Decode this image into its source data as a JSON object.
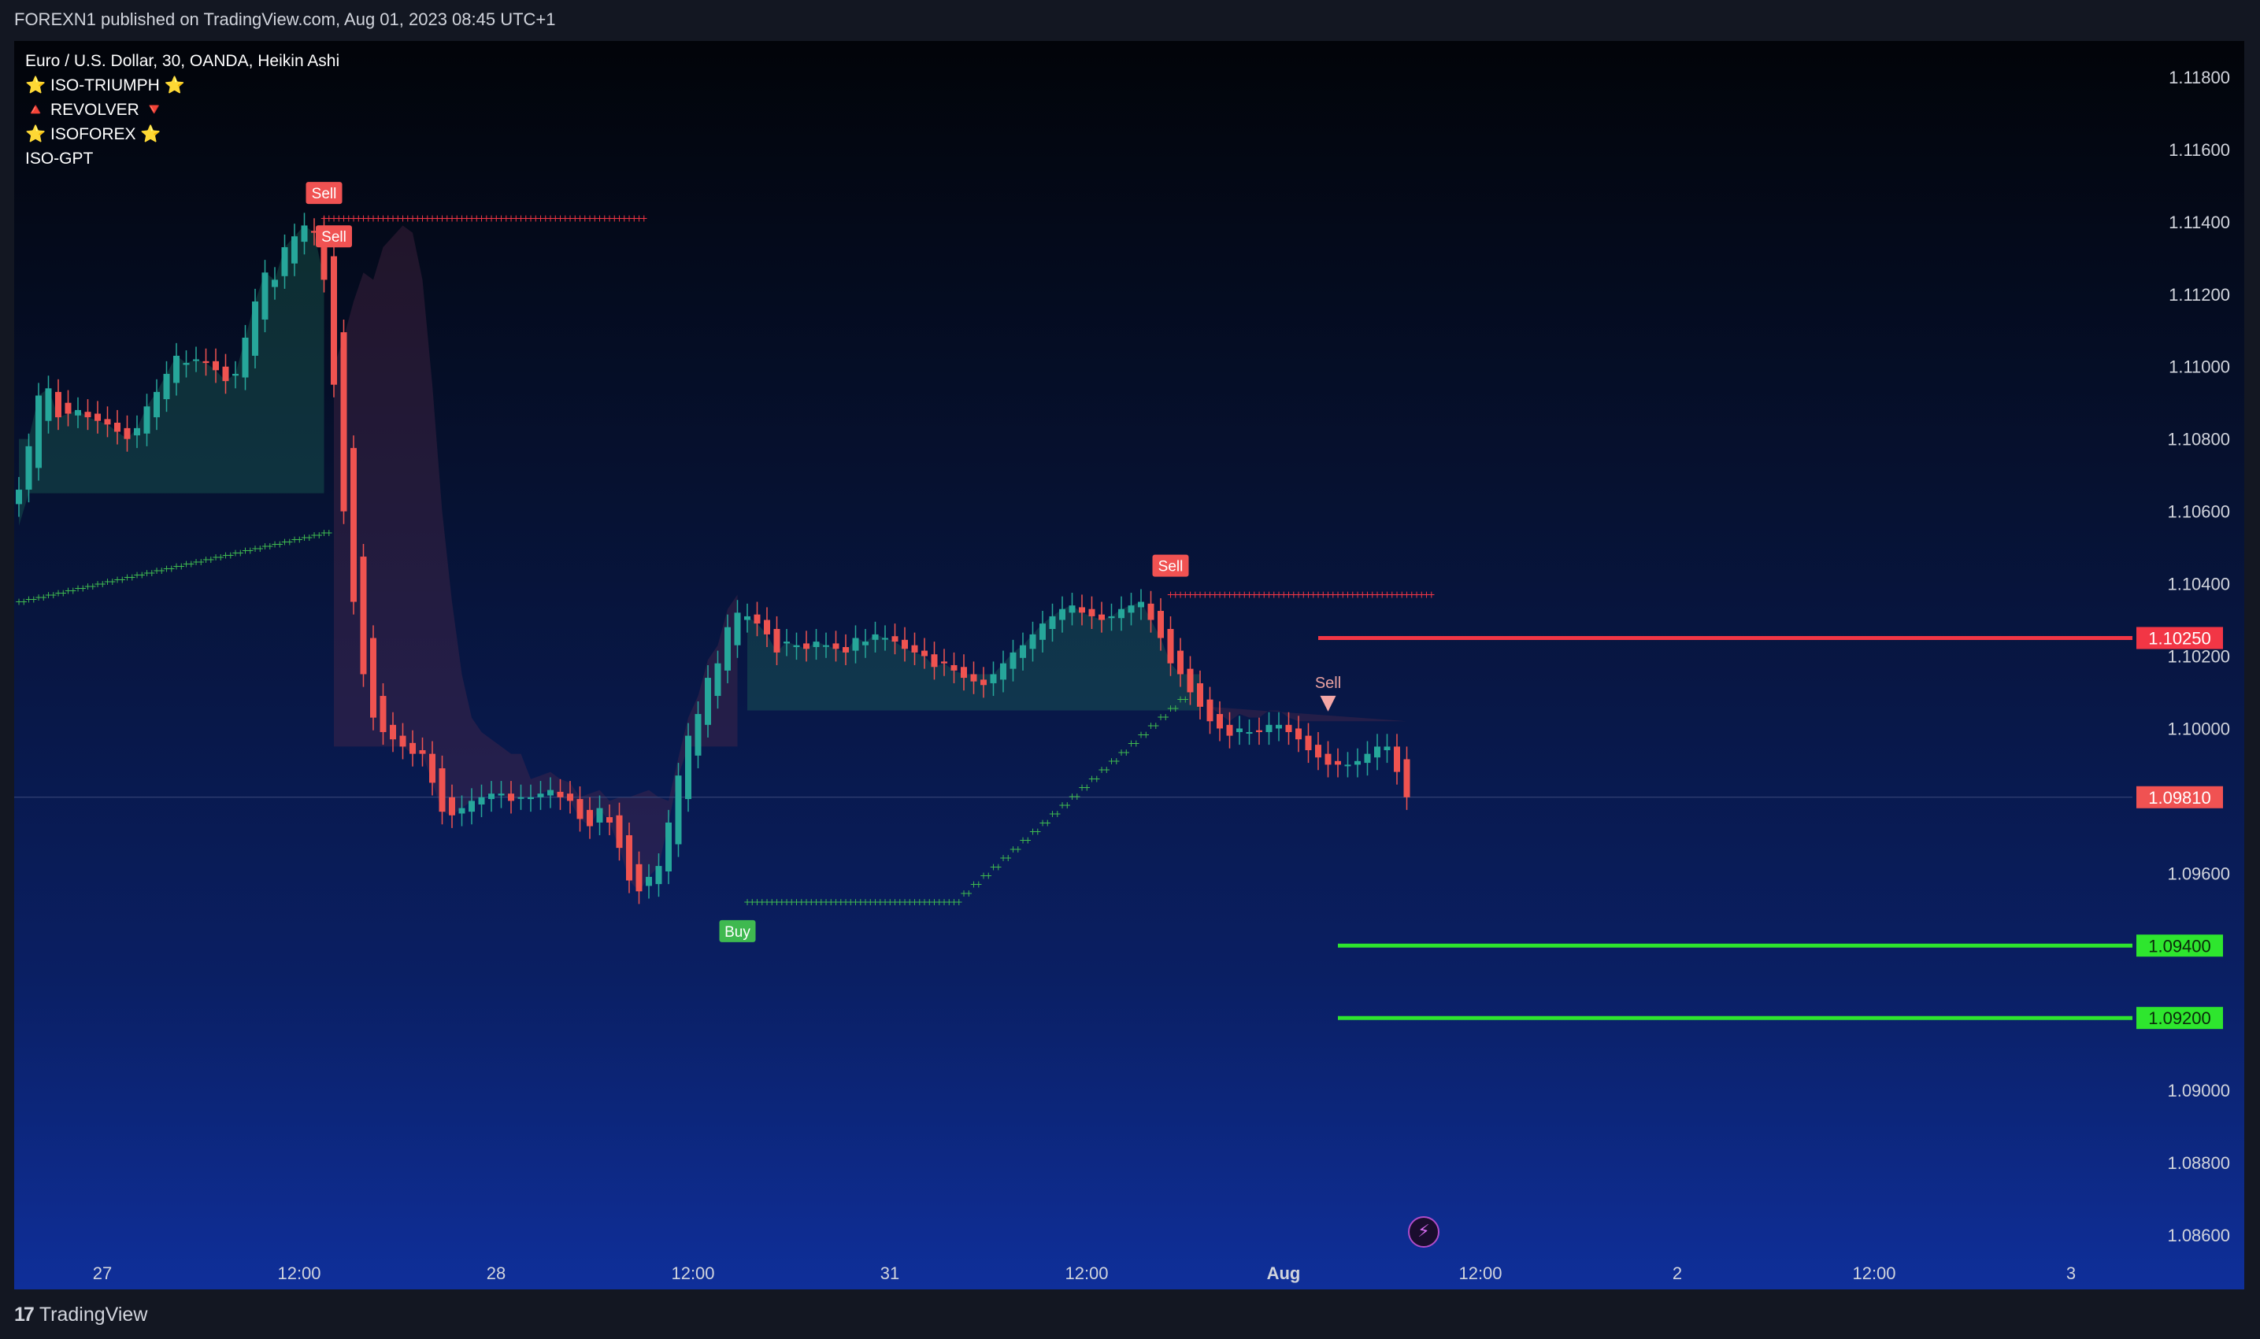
{
  "header": {
    "published_text": "FOREXN1 published on TradingView.com, Aug 01, 2023 08:45 UTC+1"
  },
  "legend": {
    "symbol_line": "Euro / U.S. Dollar, 30, OANDA, Heikin Ashi",
    "indicators": [
      "⭐ ISO-TRIUMPH ⭐",
      "🔺 REVOLVER 🔻",
      "⭐ ISOFOREX ⭐",
      "ISO-GPT"
    ]
  },
  "footer": {
    "brand": "TradingView",
    "brand_mark": "17"
  },
  "colors": {
    "bull": "#26a69a",
    "bear": "#ef5350",
    "sell_label": "#f05252",
    "buy_label": "#3fb950",
    "resistance": "#f23645",
    "support": "#2ee62e",
    "bolt": "#b04cc8"
  },
  "chart_data": {
    "type": "candlestick",
    "title": "Euro / U.S. Dollar, 30, OANDA, Heikin Ashi",
    "y_axis": {
      "ticks": [
        "1.11800",
        "1.11600",
        "1.11400",
        "1.11200",
        "1.11000",
        "1.10800",
        "1.10600",
        "1.10400",
        "1.10200",
        "1.10000",
        "1.09600",
        "1.09000",
        "1.08800",
        "1.08600"
      ],
      "ylim": [
        1.0855,
        1.119
      ]
    },
    "x_axis": {
      "ticks": [
        "27",
        "12:00",
        "28",
        "12:00",
        "31",
        "12:00",
        "Aug",
        "12:00",
        "2",
        "12:00",
        "3"
      ]
    },
    "price_labels": [
      {
        "value": "1.10250",
        "color": "#f23645"
      },
      {
        "value": "1.09810",
        "color": "#f05252"
      },
      {
        "value": "1.09400",
        "color": "#2ee62e"
      },
      {
        "value": "1.09200",
        "color": "#2ee62e"
      }
    ],
    "levels": [
      {
        "name": "resistance",
        "price": 1.1025,
        "from_index": 132,
        "to_index": 220
      },
      {
        "name": "support-1",
        "price": 1.094,
        "from_index": 134,
        "to_index": 220
      },
      {
        "name": "support-2",
        "price": 1.092,
        "from_index": 134,
        "to_index": 220
      }
    ],
    "signals": [
      {
        "label": "Sell",
        "index": 31,
        "price": 1.1148
      },
      {
        "label": "Sell",
        "index": 32,
        "price": 1.1136
      },
      {
        "label": "Buy",
        "index": 73,
        "price": 1.0944
      },
      {
        "label": "Sell",
        "index": 117,
        "price": 1.1045
      },
      {
        "label": "Sell",
        "index": 133,
        "price": 1.1006
      }
    ],
    "closes": [
      1.1066,
      1.1078,
      1.1092,
      1.1094,
      1.1086,
      1.1087,
      1.1088,
      1.1086,
      1.1085,
      1.1084,
      1.1082,
      1.108,
      1.1083,
      1.1089,
      1.1093,
      1.1098,
      1.1103,
      1.1101,
      1.1102,
      1.1101,
      1.1099,
      1.1096,
      1.1098,
      1.1108,
      1.1118,
      1.1126,
      1.1124,
      1.1133,
      1.1136,
      1.1139,
      1.1137,
      1.1124,
      1.1095,
      1.106,
      1.1035,
      1.1015,
      1.1003,
      1.0999,
      1.0997,
      1.0995,
      1.0993,
      1.0993,
      1.0985,
      1.0977,
      1.0976,
      1.0978,
      1.098,
      1.0981,
      1.0982,
      1.0982,
      1.098,
      1.0981,
      1.0981,
      1.0982,
      1.0983,
      1.0981,
      1.098,
      1.0975,
      1.0973,
      1.0978,
      1.0974,
      1.0967,
      1.0958,
      1.0955,
      1.0959,
      1.0962,
      1.0974,
      1.0987,
      1.0998,
      1.1004,
      1.1014,
      1.1018,
      1.1028,
      1.1032,
      1.1031,
      1.1029,
      1.1026,
      1.1021,
      1.1024,
      1.1023,
      1.1022,
      1.1024,
      1.1023,
      1.1022,
      1.1021,
      1.1025,
      1.1024,
      1.1026,
      1.1025,
      1.1024,
      1.1022,
      1.1021,
      1.102,
      1.1017,
      1.1018,
      1.1016,
      1.1014,
      1.1013,
      1.1012,
      1.1015,
      1.1018,
      1.1021,
      1.1023,
      1.1026,
      1.1029,
      1.1031,
      1.1033,
      1.1034,
      1.1032,
      1.1031,
      1.103,
      1.1031,
      1.1033,
      1.1034,
      1.1035,
      1.103,
      1.1025,
      1.1018,
      1.1015,
      1.101,
      1.1006,
      1.1002,
      1.1,
      1.0998,
      1.1,
      1.0999,
      1.0999,
      1.1001,
      1.1001,
      1.0999,
      1.0997,
      1.0994,
      1.0992,
      1.099,
      1.099,
      1.099,
      1.0991,
      1.0993,
      1.0995,
      1.0995,
      1.0988,
      1.0981
    ]
  }
}
